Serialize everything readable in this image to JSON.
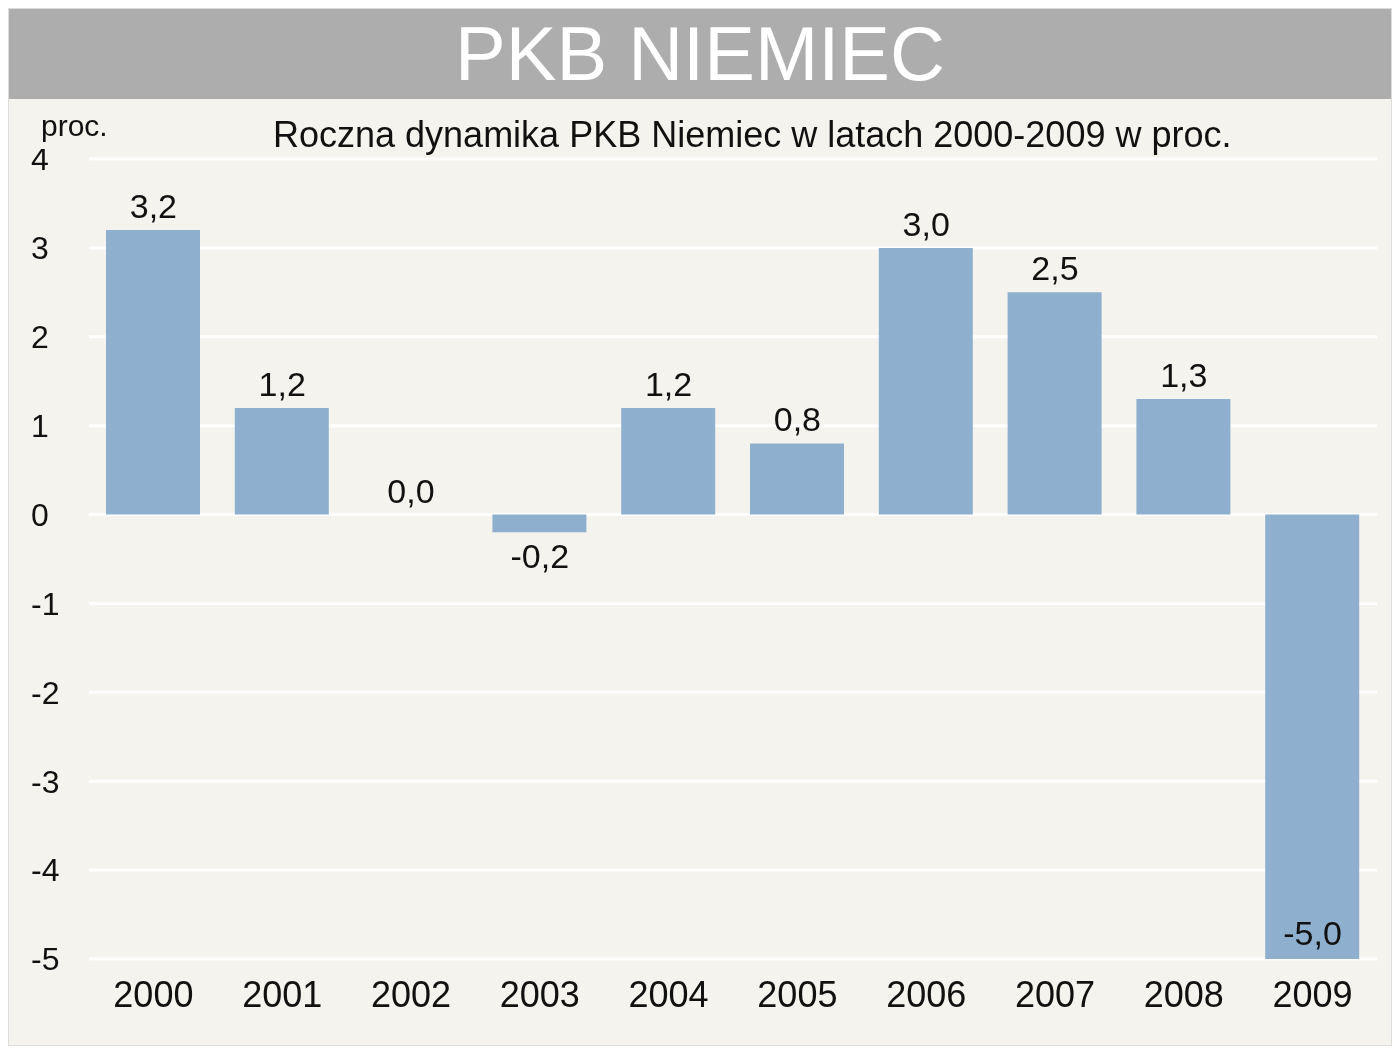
{
  "chart_data": {
    "type": "bar",
    "title": "PKB NIEMIEC",
    "subtitle": "Roczna dynamika PKB Niemiec w latach 2000-2009 w proc.",
    "ylabel": "proc.",
    "categories": [
      "2000",
      "2001",
      "2002",
      "2003",
      "2004",
      "2005",
      "2006",
      "2007",
      "2008",
      "2009"
    ],
    "values": [
      3.2,
      1.2,
      0.0,
      -0.2,
      1.2,
      0.8,
      3.0,
      2.5,
      1.3,
      -5.0
    ],
    "value_labels": [
      "3,2",
      "1,2",
      "0,0",
      "-0,2",
      "1,2",
      "0,8",
      "3,0",
      "2,5",
      "1,3",
      "-5,0"
    ],
    "color": "#8eafce",
    "ylim": [
      -5,
      4
    ],
    "yticks": [
      -5,
      -4,
      -3,
      -2,
      -1,
      0,
      1,
      2,
      3,
      4
    ],
    "grid": "y"
  }
}
